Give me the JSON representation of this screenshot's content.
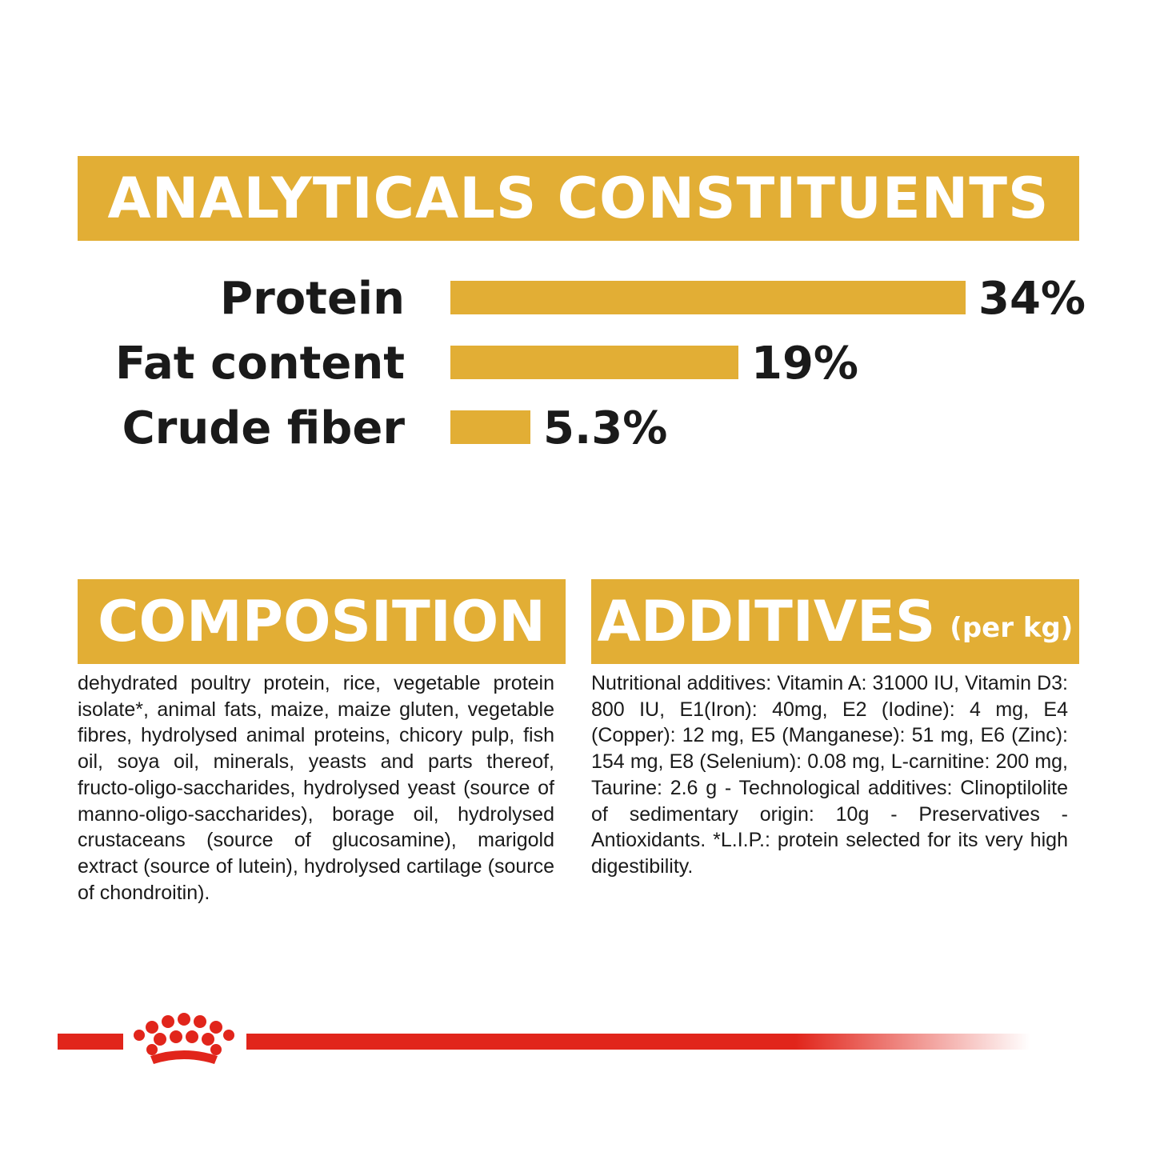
{
  "title": "ANALYTICALS CONSTITUENTS",
  "chart_data": {
    "type": "bar",
    "orientation": "horizontal",
    "title": "ANALYTICALS CONSTITUENTS",
    "categories": [
      "Protein",
      "Fat content",
      "Crude fiber"
    ],
    "values": [
      34,
      19,
      5.3
    ],
    "value_labels": [
      "34%",
      "19%",
      "5.3%"
    ],
    "unit": "%",
    "xlim": [
      0,
      34
    ],
    "grid": false,
    "bar_color": "#e2ae35"
  },
  "composition": {
    "heading": "COMPOSITION",
    "text": "dehydrated poultry protein, rice, vegetable protein isolate*, animal fats, maize, maize gluten, vegetable fibres, hydrolysed animal proteins, chicory pulp, fish oil, soya oil, minerals, yeasts and parts thereof, fructo-oligo-saccharides, hydrolysed yeast (source of manno-oligo-saccharides), borage oil, hydrolysed crustaceans (source of glucosamine), marigold extract (source of lutein), hydrolysed cartilage (source of chondroitin)."
  },
  "additives": {
    "heading": "ADDITIVES",
    "heading_suffix": "(per kg)",
    "text": "Nutritional additives: Vitamin A: 31000 IU, Vitamin D3: 800 IU, E1(Iron): 40mg, E2 (Iodine): 4 mg, E4 (Copper): 12 mg, E5 (Manganese): 51 mg, E6 (Zinc): 154 mg, E8 (Selenium): 0.08 mg, L-carnitine: 200 mg, Taurine: 2.6 g - Technological additives: Clinoptilolite of sedimentary origin: 10g - Preservatives - Antioxidants. *L.I.P.: protein selected for its very high digestibility."
  },
  "colors": {
    "accent": "#e2ae35",
    "brand_red": "#e1251b",
    "text": "#1a1a1a"
  },
  "icons": {
    "logo": "crown-logo-icon"
  }
}
